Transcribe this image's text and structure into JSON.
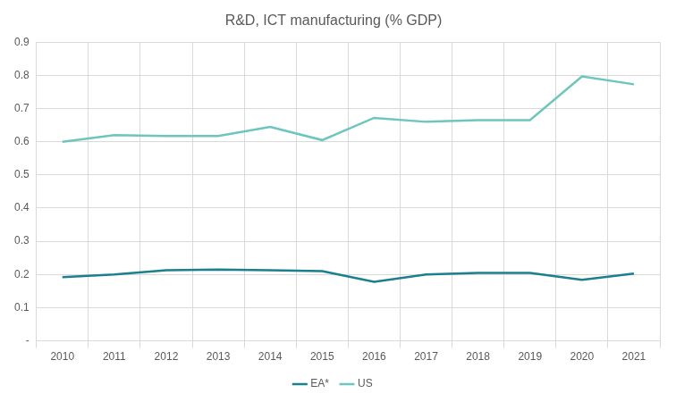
{
  "chart_data": {
    "type": "line",
    "title": "R&D, ICT manufacturing (% GDP)",
    "categories": [
      "2010",
      "2011",
      "2012",
      "2013",
      "2014",
      "2015",
      "2016",
      "2017",
      "2018",
      "2019",
      "2020",
      "2021"
    ],
    "series": [
      {
        "name": "EA*",
        "color": "#1a7f8e",
        "values": [
          0.192,
          0.2,
          0.213,
          0.215,
          0.213,
          0.21,
          0.178,
          0.2,
          0.205,
          0.205,
          0.184,
          0.203
        ]
      },
      {
        "name": "US",
        "color": "#6cc6bd",
        "values": [
          0.6,
          0.62,
          0.617,
          0.617,
          0.645,
          0.605,
          0.672,
          0.66,
          0.665,
          0.665,
          0.797,
          0.773
        ]
      }
    ],
    "ylim": [
      0,
      0.9
    ],
    "yticks": [
      {
        "value": 0,
        "label": "-"
      },
      0.1,
      0.2,
      0.3,
      0.4,
      0.5,
      0.6,
      0.7,
      0.8,
      0.9
    ],
    "grid": true,
    "legend": "bottom"
  }
}
